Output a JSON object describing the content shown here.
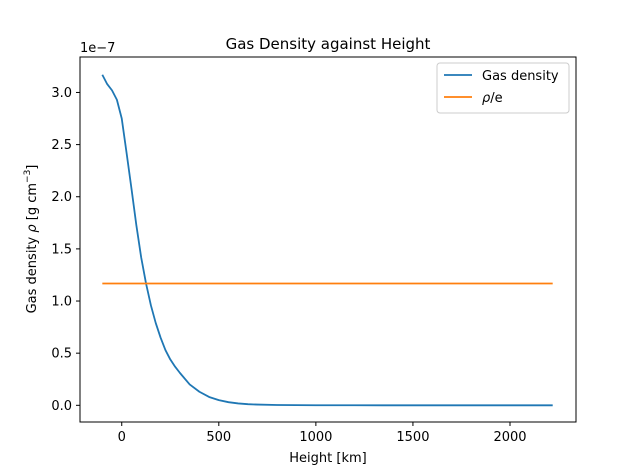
{
  "chart_data": {
    "type": "line",
    "title": "Gas Density against Height",
    "xlabel": "Height [km]",
    "ylabel_prefix": "Gas density ",
    "ylabel_rho": "ρ",
    "ylabel_units": " [g cm",
    "ylabel_exp": "−3",
    "ylabel_close": "]",
    "offset_text": "1e−7",
    "xlim": [
      -215,
      2340
    ],
    "ylim": [
      -0.16,
      3.34
    ],
    "xticks": [
      0,
      500,
      1000,
      1500,
      2000
    ],
    "xtick_labels": [
      "0",
      "500",
      "1000",
      "1500",
      "2000"
    ],
    "yticks": [
      0.0,
      0.5,
      1.0,
      1.5,
      2.0,
      2.5,
      3.0
    ],
    "ytick_labels": [
      "0.0",
      "0.5",
      "1.0",
      "1.5",
      "2.0",
      "2.5",
      "3.0"
    ],
    "legend_position": "upper right",
    "series": [
      {
        "name": "Gas density",
        "color": "#1f77b4",
        "x": [
          -100,
          -75,
          -50,
          -25,
          0,
          25,
          50,
          75,
          100,
          125,
          150,
          175,
          200,
          225,
          250,
          275,
          300,
          350,
          400,
          450,
          500,
          550,
          600,
          650,
          700,
          800,
          900,
          1000,
          1200,
          1500,
          1800,
          2000,
          2220
        ],
        "y": [
          3.17,
          3.08,
          3.02,
          2.93,
          2.75,
          2.42,
          2.08,
          1.73,
          1.42,
          1.17,
          0.96,
          0.79,
          0.65,
          0.53,
          0.44,
          0.37,
          0.31,
          0.2,
          0.13,
          0.08,
          0.05,
          0.03,
          0.018,
          0.011,
          0.007,
          0.003,
          0.0015,
          0.0008,
          0.0003,
          0.0001,
          4e-05,
          2e-05,
          1e-05
        ]
      },
      {
        "name": "ρ/e",
        "name_rho": "ρ",
        "name_rest": "/e",
        "color": "#ff7f0e",
        "x": [
          -100,
          2220
        ],
        "y": [
          1.168,
          1.168
        ]
      }
    ]
  }
}
